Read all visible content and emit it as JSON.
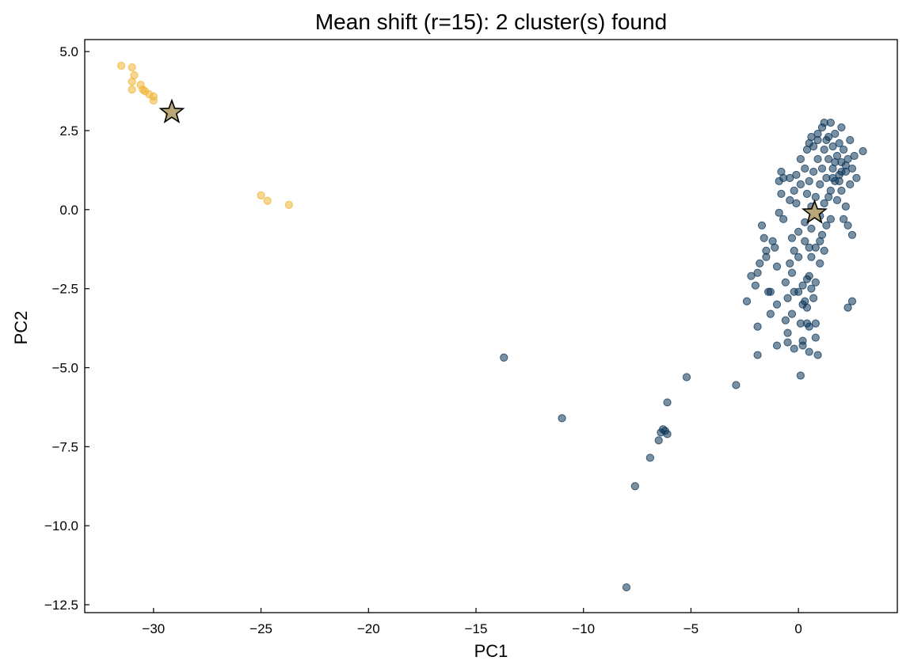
{
  "chart_data": {
    "type": "scatter",
    "title": "Mean shift (r=15): 2 cluster(s) found",
    "xlabel": "PC1",
    "ylabel": "PC2",
    "xlim": [
      -33.2,
      4.6
    ],
    "ylim": [
      -12.75,
      5.38
    ],
    "xticks": [
      -30,
      -25,
      -20,
      -15,
      -10,
      -5,
      0
    ],
    "xtick_labels": [
      "−30",
      "−25",
      "−20",
      "−15",
      "−10",
      "−5",
      "0"
    ],
    "yticks": [
      5.0,
      2.5,
      0.0,
      -2.5,
      -5.0,
      -7.5,
      -10.0,
      -12.5
    ],
    "ytick_labels": [
      "5.0",
      "2.5",
      "0.0",
      "−2.5",
      "−5.0",
      "−7.5",
      "−10.0",
      "−12.5"
    ],
    "grid": false,
    "colors": {
      "cluster_0": "#0b3458",
      "cluster_1": "#eeb534",
      "center": "#b8a878"
    },
    "series": [
      {
        "cluster": 0,
        "color": "#0b3458",
        "points": [
          [
            -13.7,
            -4.68
          ],
          [
            -11.0,
            -6.6
          ],
          [
            -8.0,
            -11.95
          ],
          [
            -7.6,
            -8.75
          ],
          [
            -6.9,
            -7.85
          ],
          [
            -6.5,
            -7.3
          ],
          [
            -6.4,
            -7.05
          ],
          [
            -6.3,
            -6.95
          ],
          [
            -6.2,
            -7.0
          ],
          [
            -6.1,
            -7.1
          ],
          [
            -6.1,
            -6.1
          ],
          [
            -5.2,
            -5.3
          ],
          [
            -2.9,
            -5.55
          ],
          [
            -1.9,
            -4.6
          ],
          [
            -1.9,
            -3.7
          ],
          [
            -2.4,
            -2.9
          ],
          [
            -2.2,
            -2.1
          ],
          [
            -2.0,
            -2.4
          ],
          [
            -1.9,
            -2.0
          ],
          [
            -1.8,
            -1.7
          ],
          [
            -1.7,
            -0.5
          ],
          [
            -1.6,
            -0.9
          ],
          [
            -1.5,
            -1.3
          ],
          [
            -1.4,
            -2.6
          ],
          [
            -1.3,
            -2.6
          ],
          [
            -1.3,
            -3.3
          ],
          [
            -1.2,
            -1.0
          ],
          [
            -1.1,
            -1.2
          ],
          [
            -1.0,
            -4.3
          ],
          [
            -1.0,
            -3.0
          ],
          [
            -1.0,
            -1.8
          ],
          [
            -0.9,
            0.9
          ],
          [
            -0.8,
            0.5
          ],
          [
            -0.8,
            1.2
          ],
          [
            -0.7,
            -0.3
          ],
          [
            -0.7,
            1.0
          ],
          [
            -0.6,
            -2.3
          ],
          [
            -0.6,
            -3.5
          ],
          [
            -0.5,
            -4.2
          ],
          [
            -0.5,
            -3.9
          ],
          [
            -0.5,
            -2.8
          ],
          [
            -0.4,
            -1.7
          ],
          [
            -0.4,
            0.3
          ],
          [
            -0.3,
            -2.0
          ],
          [
            -0.3,
            -3.3
          ],
          [
            -0.2,
            -4.4
          ],
          [
            -0.2,
            -1.3
          ],
          [
            -0.2,
            0.6
          ],
          [
            -0.1,
            1.1
          ],
          [
            -0.1,
            0.2
          ],
          [
            0.0,
            -2.6
          ],
          [
            0.0,
            -1.5
          ],
          [
            0.0,
            -0.7
          ],
          [
            0.1,
            -5.25
          ],
          [
            0.1,
            1.6
          ],
          [
            0.1,
            -3.6
          ],
          [
            0.2,
            -4.3
          ],
          [
            0.2,
            -4.15
          ],
          [
            0.2,
            -3.0
          ],
          [
            0.2,
            -2.4
          ],
          [
            0.3,
            -1.0
          ],
          [
            0.3,
            -0.4
          ],
          [
            0.3,
            1.3
          ],
          [
            0.4,
            -3.6
          ],
          [
            0.4,
            -2.2
          ],
          [
            0.4,
            0.5
          ],
          [
            0.4,
            1.9
          ],
          [
            0.5,
            -4.5
          ],
          [
            0.5,
            -3.7
          ],
          [
            0.5,
            -2.1
          ],
          [
            0.5,
            0.9
          ],
          [
            0.5,
            2.1
          ],
          [
            0.6,
            -1.5
          ],
          [
            0.6,
            -0.6
          ],
          [
            0.6,
            0.1
          ],
          [
            0.6,
            2.3
          ],
          [
            0.7,
            -2.8
          ],
          [
            0.7,
            1.2
          ],
          [
            0.7,
            2.0
          ],
          [
            0.8,
            -4.05
          ],
          [
            0.8,
            -3.6
          ],
          [
            0.8,
            -1.2
          ],
          [
            0.8,
            0.4
          ],
          [
            0.9,
            -4.6
          ],
          [
            0.9,
            1.6
          ],
          [
            0.9,
            2.2
          ],
          [
            0.9,
            2.4
          ],
          [
            1.0,
            0.8
          ],
          [
            1.0,
            -0.2
          ],
          [
            1.0,
            -1.0
          ],
          [
            1.1,
            1.3
          ],
          [
            1.1,
            2.6
          ],
          [
            1.2,
            0.2
          ],
          [
            1.2,
            1.9
          ],
          [
            1.2,
            2.75
          ],
          [
            1.3,
            -0.5
          ],
          [
            1.3,
            1.0
          ],
          [
            1.4,
            2.3
          ],
          [
            1.4,
            1.6
          ],
          [
            1.5,
            0.6
          ],
          [
            1.5,
            -0.3
          ],
          [
            1.5,
            2.75
          ],
          [
            1.6,
            1.3
          ],
          [
            1.6,
            2.0
          ],
          [
            1.7,
            0.9
          ],
          [
            1.7,
            2.4
          ],
          [
            1.8,
            1.7
          ],
          [
            1.8,
            0.3
          ],
          [
            1.9,
            1.1
          ],
          [
            1.9,
            2.1
          ],
          [
            2.0,
            0.6
          ],
          [
            2.0,
            1.5
          ],
          [
            2.0,
            2.6
          ],
          [
            2.1,
            1.9
          ],
          [
            2.1,
            -0.3
          ],
          [
            2.2,
            1.2
          ],
          [
            2.2,
            0.1
          ],
          [
            2.3,
            1.6
          ],
          [
            2.3,
            -0.5
          ],
          [
            2.3,
            -3.1
          ],
          [
            2.4,
            2.2
          ],
          [
            2.4,
            0.8
          ],
          [
            2.5,
            1.3
          ],
          [
            2.5,
            -2.9
          ],
          [
            2.5,
            -0.8
          ],
          [
            2.6,
            1.7
          ],
          [
            2.7,
            1.0
          ],
          [
            3.0,
            1.85
          ],
          [
            1.0,
            -1.7
          ],
          [
            0.8,
            -2.3
          ],
          [
            0.3,
            -2.9
          ],
          [
            -0.3,
            -0.9
          ],
          [
            0.1,
            0.8
          ],
          [
            1.3,
            2.2
          ],
          [
            1.9,
            0.9
          ],
          [
            2.2,
            1.4
          ],
          [
            1.6,
            1.0
          ],
          [
            -0.4,
            1.0
          ],
          [
            0.4,
            -3.1
          ],
          [
            1.1,
            -0.8
          ],
          [
            -1.5,
            -1.5
          ],
          [
            -0.2,
            -2.6
          ],
          [
            0.6,
            -2.5
          ],
          [
            1.4,
            0.4
          ],
          [
            2.0,
            1.2
          ],
          [
            1.7,
            1.5
          ],
          [
            -0.9,
            -0.1
          ],
          [
            0.5,
            -1.2
          ],
          [
            1.2,
            -1.3
          ]
        ]
      },
      {
        "cluster": 1,
        "color": "#eeb534",
        "points": [
          [
            -31.5,
            4.55
          ],
          [
            -31.0,
            4.5
          ],
          [
            -30.9,
            4.25
          ],
          [
            -31.0,
            4.05
          ],
          [
            -31.0,
            3.8
          ],
          [
            -30.6,
            3.95
          ],
          [
            -30.5,
            3.8
          ],
          [
            -30.4,
            3.75
          ],
          [
            -30.2,
            3.65
          ],
          [
            -30.0,
            3.58
          ],
          [
            -30.0,
            3.45
          ],
          [
            -29.3,
            3.05
          ],
          [
            -25.0,
            0.45
          ],
          [
            -24.7,
            0.28
          ],
          [
            -23.7,
            0.15
          ]
        ]
      }
    ],
    "centers": [
      {
        "cluster": 1,
        "x": -29.15,
        "y": 3.08
      },
      {
        "cluster": 0,
        "x": 0.75,
        "y": -0.1
      }
    ]
  }
}
